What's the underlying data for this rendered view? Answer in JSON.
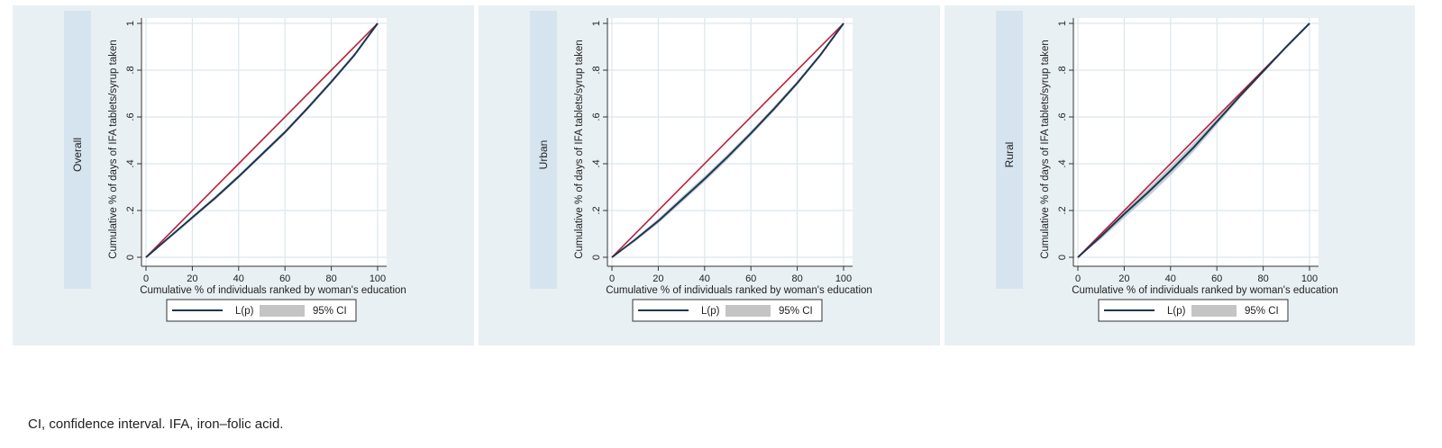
{
  "footnote": "CI, confidence interval. IFA, iron–folic acid.",
  "colors": {
    "panel_bg": "#e9f0f4",
    "label_strip": "#d6e4f0",
    "plot_bg": "#ffffff",
    "grid": "#dce6ec",
    "equality_line": "#b8213a",
    "lp_line": "#1e3550",
    "ci_band": "#b9c7d0",
    "legend_ci_swatch": "#c4c4c4"
  },
  "chart_data": [
    {
      "type": "line",
      "panel_label": "Overall",
      "xlabel": "Cumulative % of individuals ranked by woman's education",
      "ylabel": "Cumulative % of days of IFA tablets/syrup taken",
      "xlim": [
        0,
        100
      ],
      "ylim": [
        0,
        1
      ],
      "xticks": [
        "0",
        "20",
        "40",
        "60",
        "80",
        "100"
      ],
      "yticks": [
        "0",
        ".2",
        ".4",
        ".6",
        ".8",
        "1"
      ],
      "grid": true,
      "legend": [
        "L(p)",
        "95% CI"
      ],
      "legend_position": "bottom",
      "series": [
        {
          "name": "L(p)",
          "x": [
            0,
            10,
            20,
            30,
            40,
            50,
            60,
            70,
            80,
            90,
            100
          ],
          "values": [
            0,
            0.085,
            0.17,
            0.255,
            0.345,
            0.44,
            0.535,
            0.64,
            0.75,
            0.865,
            1
          ]
        }
      ],
      "ci_band": {
        "name": "95% CI",
        "x": [
          0,
          10,
          20,
          30,
          40,
          50,
          60,
          70,
          80,
          90,
          100
        ],
        "lower": [
          0,
          0.08,
          0.163,
          0.247,
          0.337,
          0.432,
          0.527,
          0.632,
          0.742,
          0.858,
          1
        ],
        "upper": [
          0,
          0.09,
          0.177,
          0.263,
          0.353,
          0.448,
          0.543,
          0.648,
          0.758,
          0.872,
          1
        ]
      },
      "reference_line": {
        "x": [
          0,
          100
        ],
        "values": [
          0,
          1
        ]
      }
    },
    {
      "type": "line",
      "panel_label": "Urban",
      "xlabel": "Cumulative % of individuals ranked by woman's education",
      "ylabel": "Cumulative % of days of IFA tablets/syrup taken",
      "xlim": [
        0,
        100
      ],
      "ylim": [
        0,
        1
      ],
      "xticks": [
        "0",
        "20",
        "40",
        "60",
        "80",
        "100"
      ],
      "yticks": [
        "0",
        ".2",
        ".4",
        ".6",
        ".8",
        "1"
      ],
      "grid": true,
      "legend": [
        "L(p)",
        "95% CI"
      ],
      "legend_position": "bottom",
      "series": [
        {
          "name": "L(p)",
          "x": [
            0,
            10,
            20,
            30,
            40,
            50,
            60,
            70,
            80,
            90,
            100
          ],
          "values": [
            0,
            0.075,
            0.155,
            0.245,
            0.335,
            0.43,
            0.53,
            0.635,
            0.745,
            0.865,
            1
          ]
        }
      ],
      "ci_band": {
        "name": "95% CI",
        "x": [
          0,
          10,
          20,
          30,
          40,
          50,
          60,
          70,
          80,
          90,
          100
        ],
        "lower": [
          0,
          0.068,
          0.145,
          0.233,
          0.323,
          0.418,
          0.52,
          0.625,
          0.737,
          0.858,
          1
        ],
        "upper": [
          0,
          0.082,
          0.165,
          0.257,
          0.347,
          0.442,
          0.54,
          0.645,
          0.753,
          0.872,
          1
        ]
      },
      "reference_line": {
        "x": [
          0,
          100
        ],
        "values": [
          0,
          1
        ]
      }
    },
    {
      "type": "line",
      "panel_label": "Rural",
      "xlabel": "Cumulative % of individuals ranked by woman's education",
      "ylabel": "Cumulative % of days of IFA tablets/syrup taken",
      "xlim": [
        0,
        100
      ],
      "ylim": [
        0,
        1
      ],
      "xticks": [
        "0",
        "20",
        "40",
        "60",
        "80",
        "100"
      ],
      "yticks": [
        "0",
        ".2",
        ".4",
        ".6",
        ".8",
        "1"
      ],
      "grid": true,
      "legend": [
        "L(p)",
        "95% CI"
      ],
      "legend_position": "bottom",
      "series": [
        {
          "name": "L(p)",
          "x": [
            0,
            10,
            20,
            30,
            40,
            50,
            60,
            70,
            80,
            90,
            100
          ],
          "values": [
            0,
            0.09,
            0.185,
            0.275,
            0.37,
            0.47,
            0.58,
            0.69,
            0.795,
            0.9,
            1
          ]
        }
      ],
      "ci_band": {
        "name": "95% CI",
        "x": [
          0,
          10,
          20,
          30,
          40,
          50,
          60,
          70,
          80,
          90,
          100
        ],
        "lower": [
          0,
          0.078,
          0.168,
          0.255,
          0.35,
          0.452,
          0.566,
          0.68,
          0.788,
          0.895,
          1
        ],
        "upper": [
          0,
          0.102,
          0.2,
          0.293,
          0.39,
          0.49,
          0.594,
          0.7,
          0.802,
          0.905,
          1
        ]
      },
      "reference_line": {
        "x": [
          0,
          100
        ],
        "values": [
          0,
          1
        ]
      }
    }
  ]
}
